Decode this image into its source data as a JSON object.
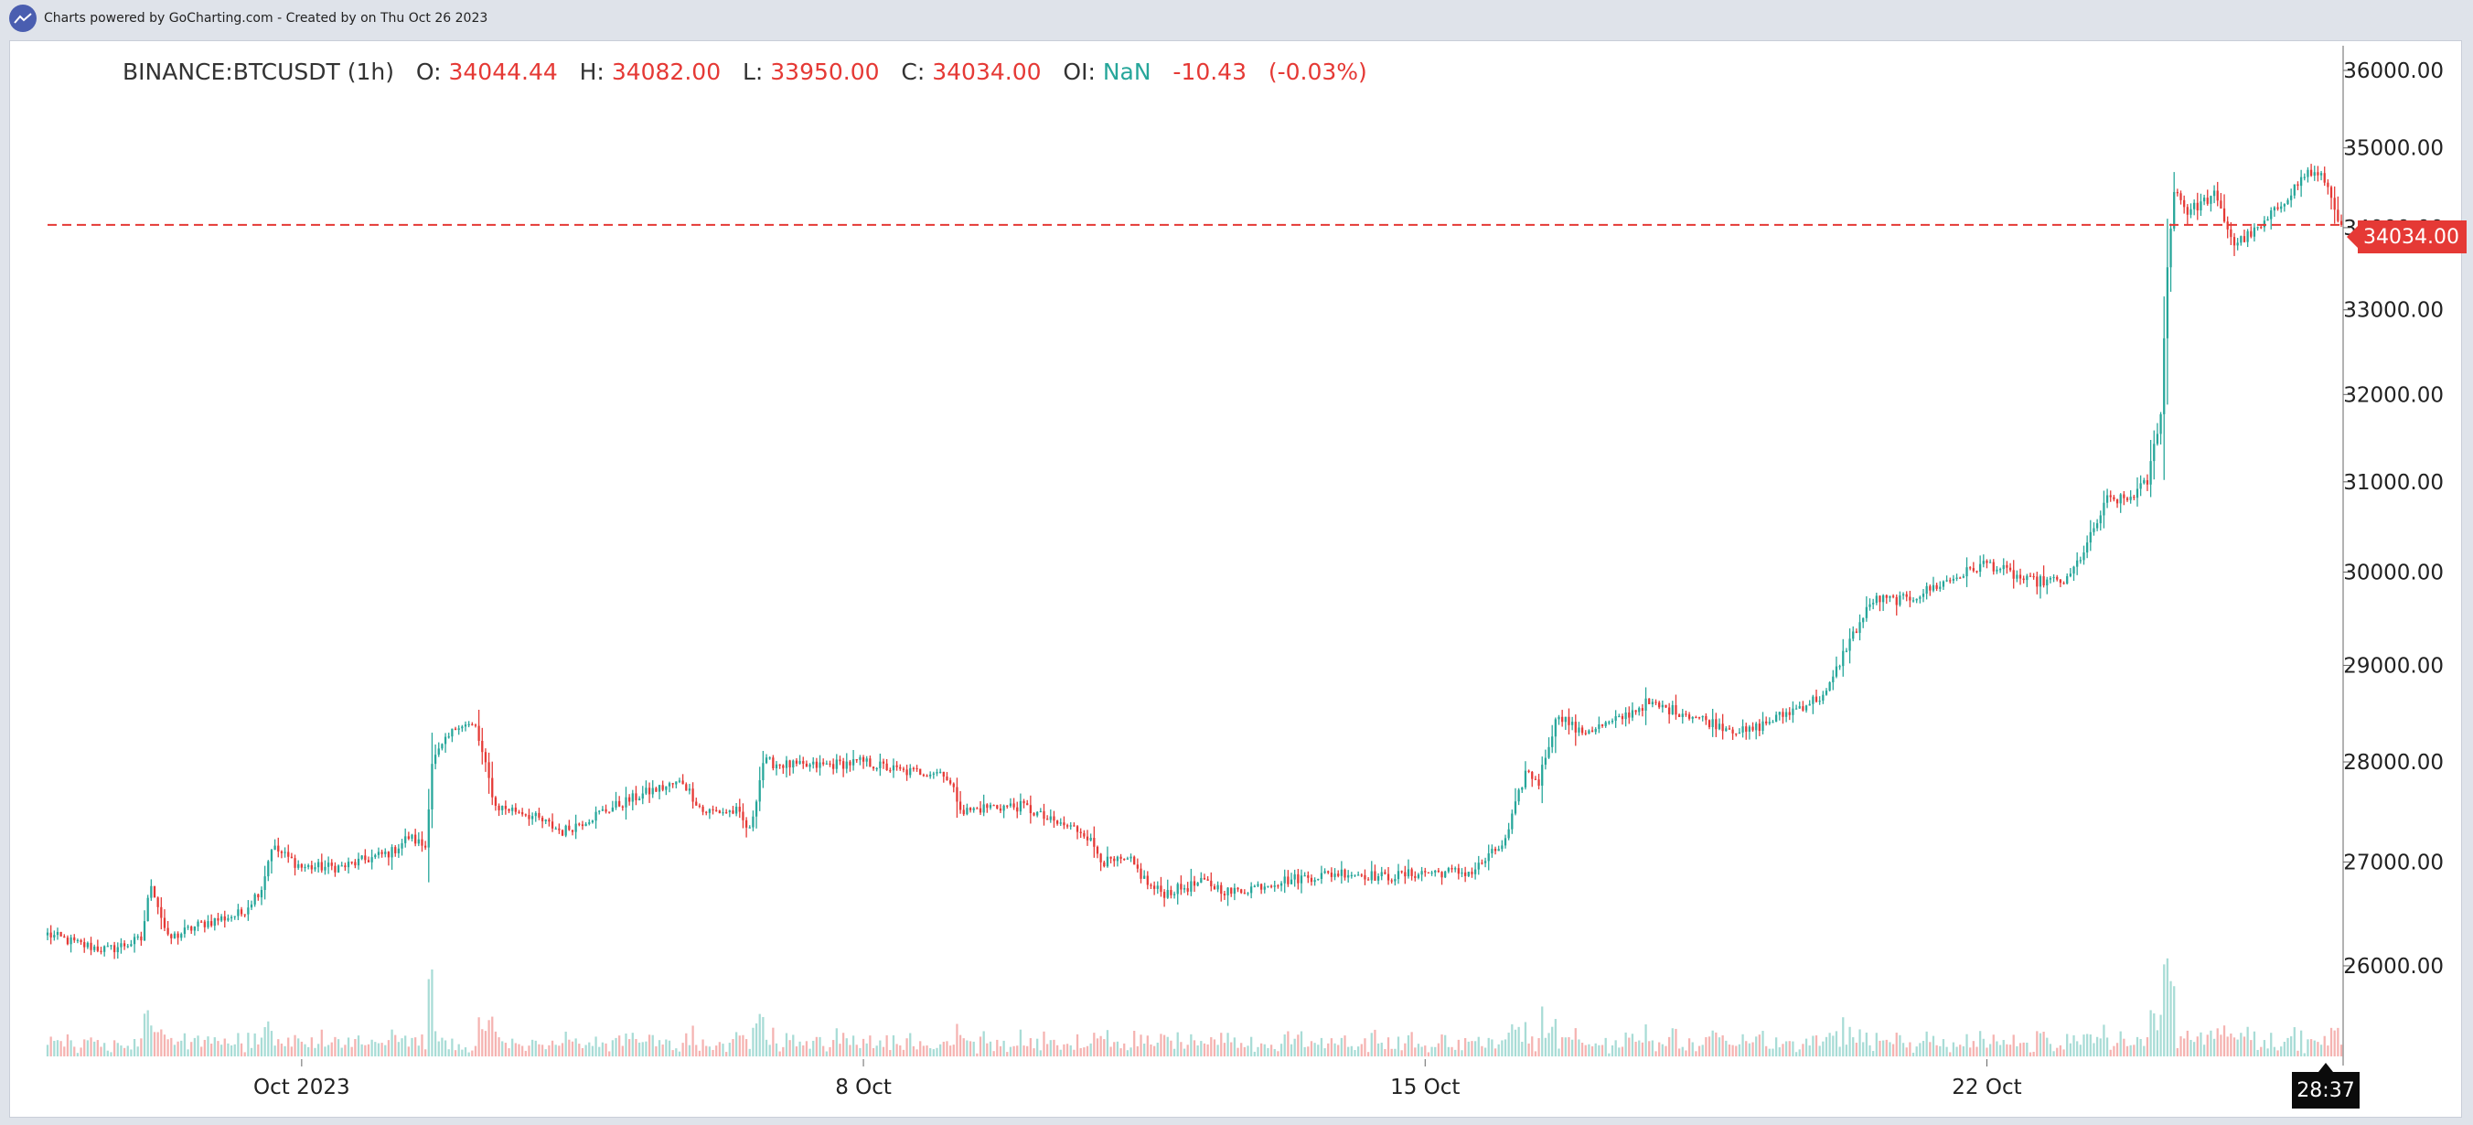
{
  "header": {
    "text": "Charts powered by GoCharting.com - Created by  on Thu Oct 26 2023",
    "logo_icon": "trend-line-icon"
  },
  "legend": {
    "symbol": "BINANCE:BTCUSDT (1h)",
    "o_label": "O:",
    "o_value": "34044.44",
    "h_label": "H:",
    "h_value": "34082.00",
    "l_label": "L:",
    "l_value": "33950.00",
    "c_label": "C:",
    "c_value": "34034.00",
    "oi_label": "OI:",
    "oi_value": "NaN",
    "change": "-10.43",
    "change_pct": "(-0.03%)"
  },
  "price_tag": "34034.00",
  "timer": "28:37",
  "colors": {
    "up": "#26a69a",
    "down": "#e53935",
    "up_volume": "#a8dcd6",
    "down_volume": "#f5b3b1",
    "last_price_line": "#e53935"
  },
  "chart_data": {
    "type": "candlestick",
    "symbol": "BINANCE:BTCUSDT",
    "interval": "1h",
    "y_axis": {
      "min": 25200,
      "max": 36300,
      "scale": "log",
      "ticks": [
        "26000.00",
        "27000.00",
        "28000.00",
        "29000.00",
        "30000.00",
        "31000.00",
        "32000.00",
        "33000.00",
        "34000.00",
        "35000.00",
        "36000.00"
      ],
      "tick_values": [
        26000,
        27000,
        28000,
        29000,
        30000,
        31000,
        32000,
        33000,
        34000,
        35000,
        36000
      ]
    },
    "x_axis": {
      "range": [
        "2023-09-27 20:00",
        "2023-10-26 10:00"
      ],
      "ticks": [
        "Oct 2023",
        "8 Oct",
        "15 Oct",
        "22 Oct"
      ],
      "tick_values": [
        "2023-10-01 00:00",
        "2023-10-08 00:00",
        "2023-10-15 00:00",
        "2023-10-22 00:00"
      ]
    },
    "last_price": 34034,
    "grid": false,
    "anchors": [
      [
        "2023-09-27 20:00",
        26300
      ],
      [
        "2023-09-28 06:00",
        26200
      ],
      [
        "2023-09-28 14:00",
        26150
      ],
      [
        "2023-09-29 00:00",
        26250
      ],
      [
        "2023-09-29 03:00",
        26800
      ],
      [
        "2023-09-29 08:00",
        26250
      ],
      [
        "2023-09-29 18:00",
        26400
      ],
      [
        "2023-09-30 06:00",
        26500
      ],
      [
        "2023-09-30 12:00",
        26750
      ],
      [
        "2023-09-30 15:00",
        27150
      ],
      [
        "2023-10-01 00:00",
        26950
      ],
      [
        "2023-10-01 12:00",
        26950
      ],
      [
        "2023-10-02 03:00",
        27100
      ],
      [
        "2023-10-02 08:00",
        27250
      ],
      [
        "2023-10-02 13:00",
        27150
      ],
      [
        "2023-10-02 15:00",
        28000
      ],
      [
        "2023-10-02 23:00",
        28400
      ],
      [
        "2023-10-03 04:00",
        28350
      ],
      [
        "2023-10-03 10:00",
        27550
      ],
      [
        "2023-10-03 18:00",
        27500
      ],
      [
        "2023-10-04 06:00",
        27300
      ],
      [
        "2023-10-04 18:00",
        27500
      ],
      [
        "2023-10-05 08:00",
        27700
      ],
      [
        "2023-10-05 18:00",
        27800
      ],
      [
        "2023-10-06 00:00",
        27500
      ],
      [
        "2023-10-06 10:00",
        27500
      ],
      [
        "2023-10-06 14:00",
        27300
      ],
      [
        "2023-10-06 18:00",
        28000
      ],
      [
        "2023-10-07 06:00",
        27950
      ],
      [
        "2023-10-08 00:00",
        28000
      ],
      [
        "2023-10-08 12:00",
        27900
      ],
      [
        "2023-10-09 00:00",
        27900
      ],
      [
        "2023-10-09 06:00",
        27500
      ],
      [
        "2023-10-09 14:00",
        27550
      ],
      [
        "2023-10-10 00:00",
        27550
      ],
      [
        "2023-10-10 08:00",
        27400
      ],
      [
        "2023-10-10 18:00",
        27300
      ],
      [
        "2023-10-11 00:00",
        27000
      ],
      [
        "2023-10-11 08:00",
        27000
      ],
      [
        "2023-10-11 14:00",
        26750
      ],
      [
        "2023-10-11 18:00",
        26700
      ],
      [
        "2023-10-12 06:00",
        26800
      ],
      [
        "2023-10-12 14:00",
        26700
      ],
      [
        "2023-10-13 02:00",
        26800
      ],
      [
        "2023-10-13 12:00",
        26850
      ],
      [
        "2023-10-14 00:00",
        26900
      ],
      [
        "2023-10-14 12:00",
        26850
      ],
      [
        "2023-10-15 00:00",
        26900
      ],
      [
        "2023-10-15 14:00",
        26900
      ],
      [
        "2023-10-16 00:00",
        27200
      ],
      [
        "2023-10-16 06:00",
        27900
      ],
      [
        "2023-10-16 10:00",
        27800
      ],
      [
        "2023-10-16 13:00",
        28200
      ],
      [
        "2023-10-16 16:00",
        28500
      ],
      [
        "2023-10-16 22:00",
        28300
      ],
      [
        "2023-10-17 08:00",
        28400
      ],
      [
        "2023-10-17 18:00",
        28600
      ],
      [
        "2023-10-18 06:00",
        28500
      ],
      [
        "2023-10-18 14:00",
        28400
      ],
      [
        "2023-10-19 00:00",
        28300
      ],
      [
        "2023-10-19 12:00",
        28500
      ],
      [
        "2023-10-20 00:00",
        28700
      ],
      [
        "2023-10-20 06:00",
        29200
      ],
      [
        "2023-10-20 14:00",
        29700
      ],
      [
        "2023-10-21 00:00",
        29700
      ],
      [
        "2023-10-21 12:00",
        29900
      ],
      [
        "2023-10-22 00:00",
        30100
      ],
      [
        "2023-10-22 12:00",
        29900
      ],
      [
        "2023-10-23 00:00",
        29900
      ],
      [
        "2023-10-23 06:00",
        30300
      ],
      [
        "2023-10-23 12:00",
        30800
      ],
      [
        "2023-10-23 18:00",
        30800
      ],
      [
        "2023-10-24 00:00",
        31000
      ],
      [
        "2023-10-24 04:00",
        31800
      ],
      [
        "2023-10-24 06:00",
        33500
      ],
      [
        "2023-10-24 08:00",
        34500
      ],
      [
        "2023-10-24 12:00",
        34200
      ],
      [
        "2023-10-24 20:00",
        34400
      ],
      [
        "2023-10-25 02:00",
        33800
      ],
      [
        "2023-10-25 10:00",
        34000
      ],
      [
        "2023-10-25 18:00",
        34400
      ],
      [
        "2023-10-26 00:00",
        34700
      ],
      [
        "2023-10-26 05:00",
        34600
      ],
      [
        "2023-10-26 10:00",
        34034
      ]
    ]
  }
}
